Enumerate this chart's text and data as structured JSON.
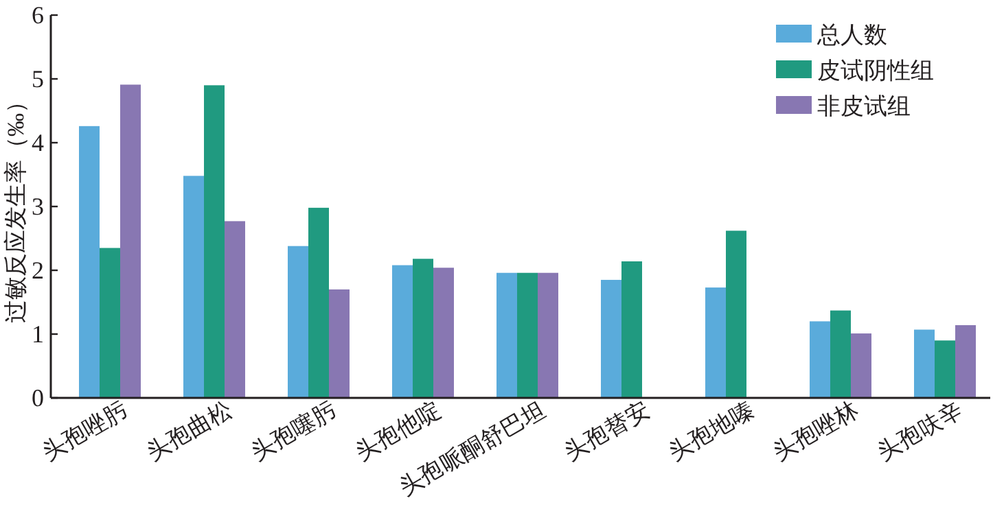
{
  "chart_data": {
    "type": "bar",
    "ylabel": "过敏反应发生率（‰）",
    "categories": [
      "头孢唑肟",
      "头孢曲松",
      "头孢噻肟",
      "头孢他啶",
      "头孢哌酮舒巴坦",
      "头孢替安",
      "头孢地嗪",
      "头孢唑林",
      "头孢呋辛"
    ],
    "series": [
      {
        "name": "总人数",
        "color": "#5aabdb",
        "values": [
          4.26,
          3.48,
          2.38,
          2.08,
          1.96,
          1.85,
          1.73,
          1.2,
          1.07
        ]
      },
      {
        "name": "皮试阴性组",
        "color": "#209a80",
        "values": [
          2.35,
          4.9,
          2.98,
          2.18,
          1.96,
          2.14,
          2.62,
          1.37,
          0.9
        ]
      },
      {
        "name": "非皮试组",
        "color": "#8877b2",
        "values": [
          4.91,
          2.77,
          1.7,
          2.04,
          1.96,
          null,
          null,
          1.01,
          1.14
        ]
      }
    ],
    "ylim": [
      0,
      6
    ],
    "yticks": [
      0,
      1,
      2,
      3,
      4,
      5,
      6
    ],
    "legend": "top right"
  }
}
